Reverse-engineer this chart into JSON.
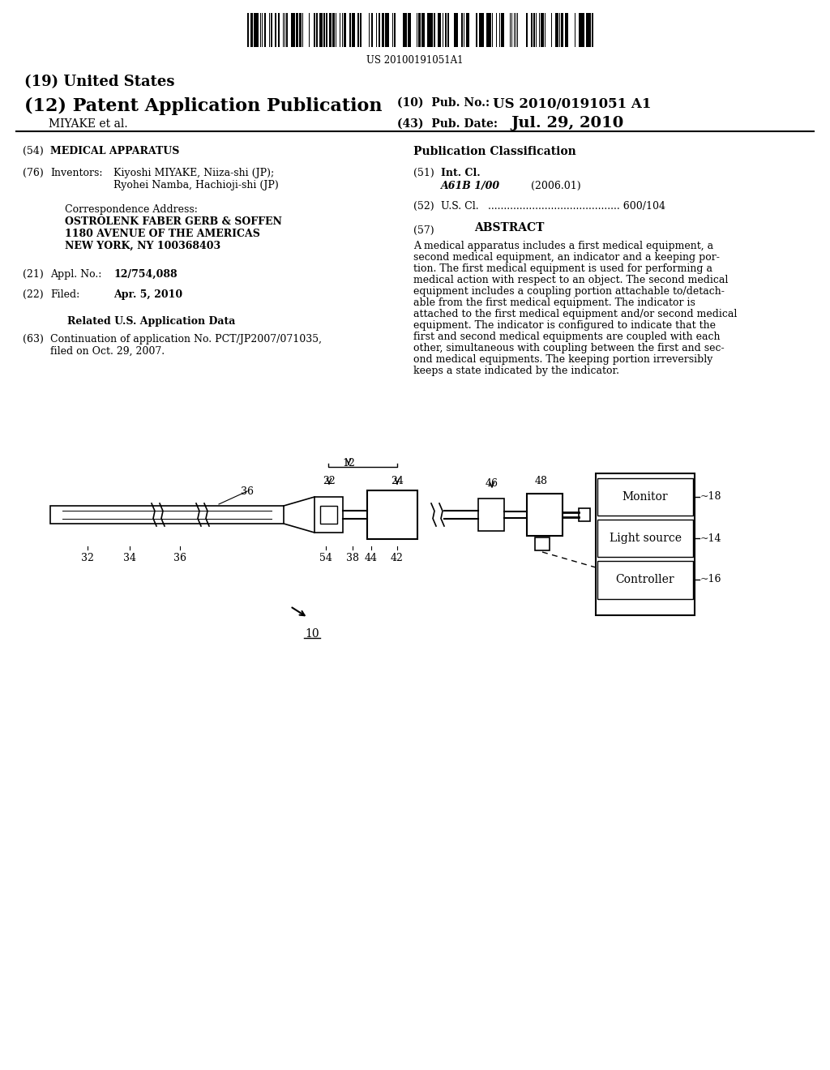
{
  "bg_color": "#ffffff",
  "barcode_text": "US 20100191051A1",
  "pub_no_value": "US 2010/0191051 A1",
  "inventor_label": "MIYAKE et al.",
  "pub_date_value": "Jul. 29, 2010",
  "field54_value": "MEDICAL APPARATUS",
  "field76_value1": "Kiyoshi MIYAKE, Niiza-shi (JP);",
  "field76_value2": "Ryohei Namba, Hachioji-shi (JP)",
  "corr_line1": "OSTROLENK FABER GERB & SOFFEN",
  "corr_line2": "1180 AVENUE OF THE AMERICAS",
  "corr_line3": "NEW YORK, NY 100368403",
  "field21_value": "12/754,088",
  "field22_value": "Apr. 5, 2010",
  "field51_class": "A61B 1/00",
  "field51_year": "(2006.01)",
  "field52_value": "600/104",
  "abstract_lines": [
    "A medical apparatus includes a first medical equipment, a",
    "second medical equipment, an indicator and a keeping por-",
    "tion. The first medical equipment is used for performing a",
    "medical action with respect to an object. The second medical",
    "equipment includes a coupling portion attachable to/detach-",
    "able from the first medical equipment. The indicator is",
    "attached to the first medical equipment and/or second medical",
    "equipment. The indicator is configured to indicate that the",
    "first and second medical equipments are coupled with each",
    "other, simultaneous with coupling between the first and sec-",
    "ond medical equipments. The keeping portion irreversibly",
    "keeps a state indicated by the indicator."
  ],
  "monitor_label": "Monitor",
  "light_source_label": "Light source",
  "controller_label": "Controller"
}
